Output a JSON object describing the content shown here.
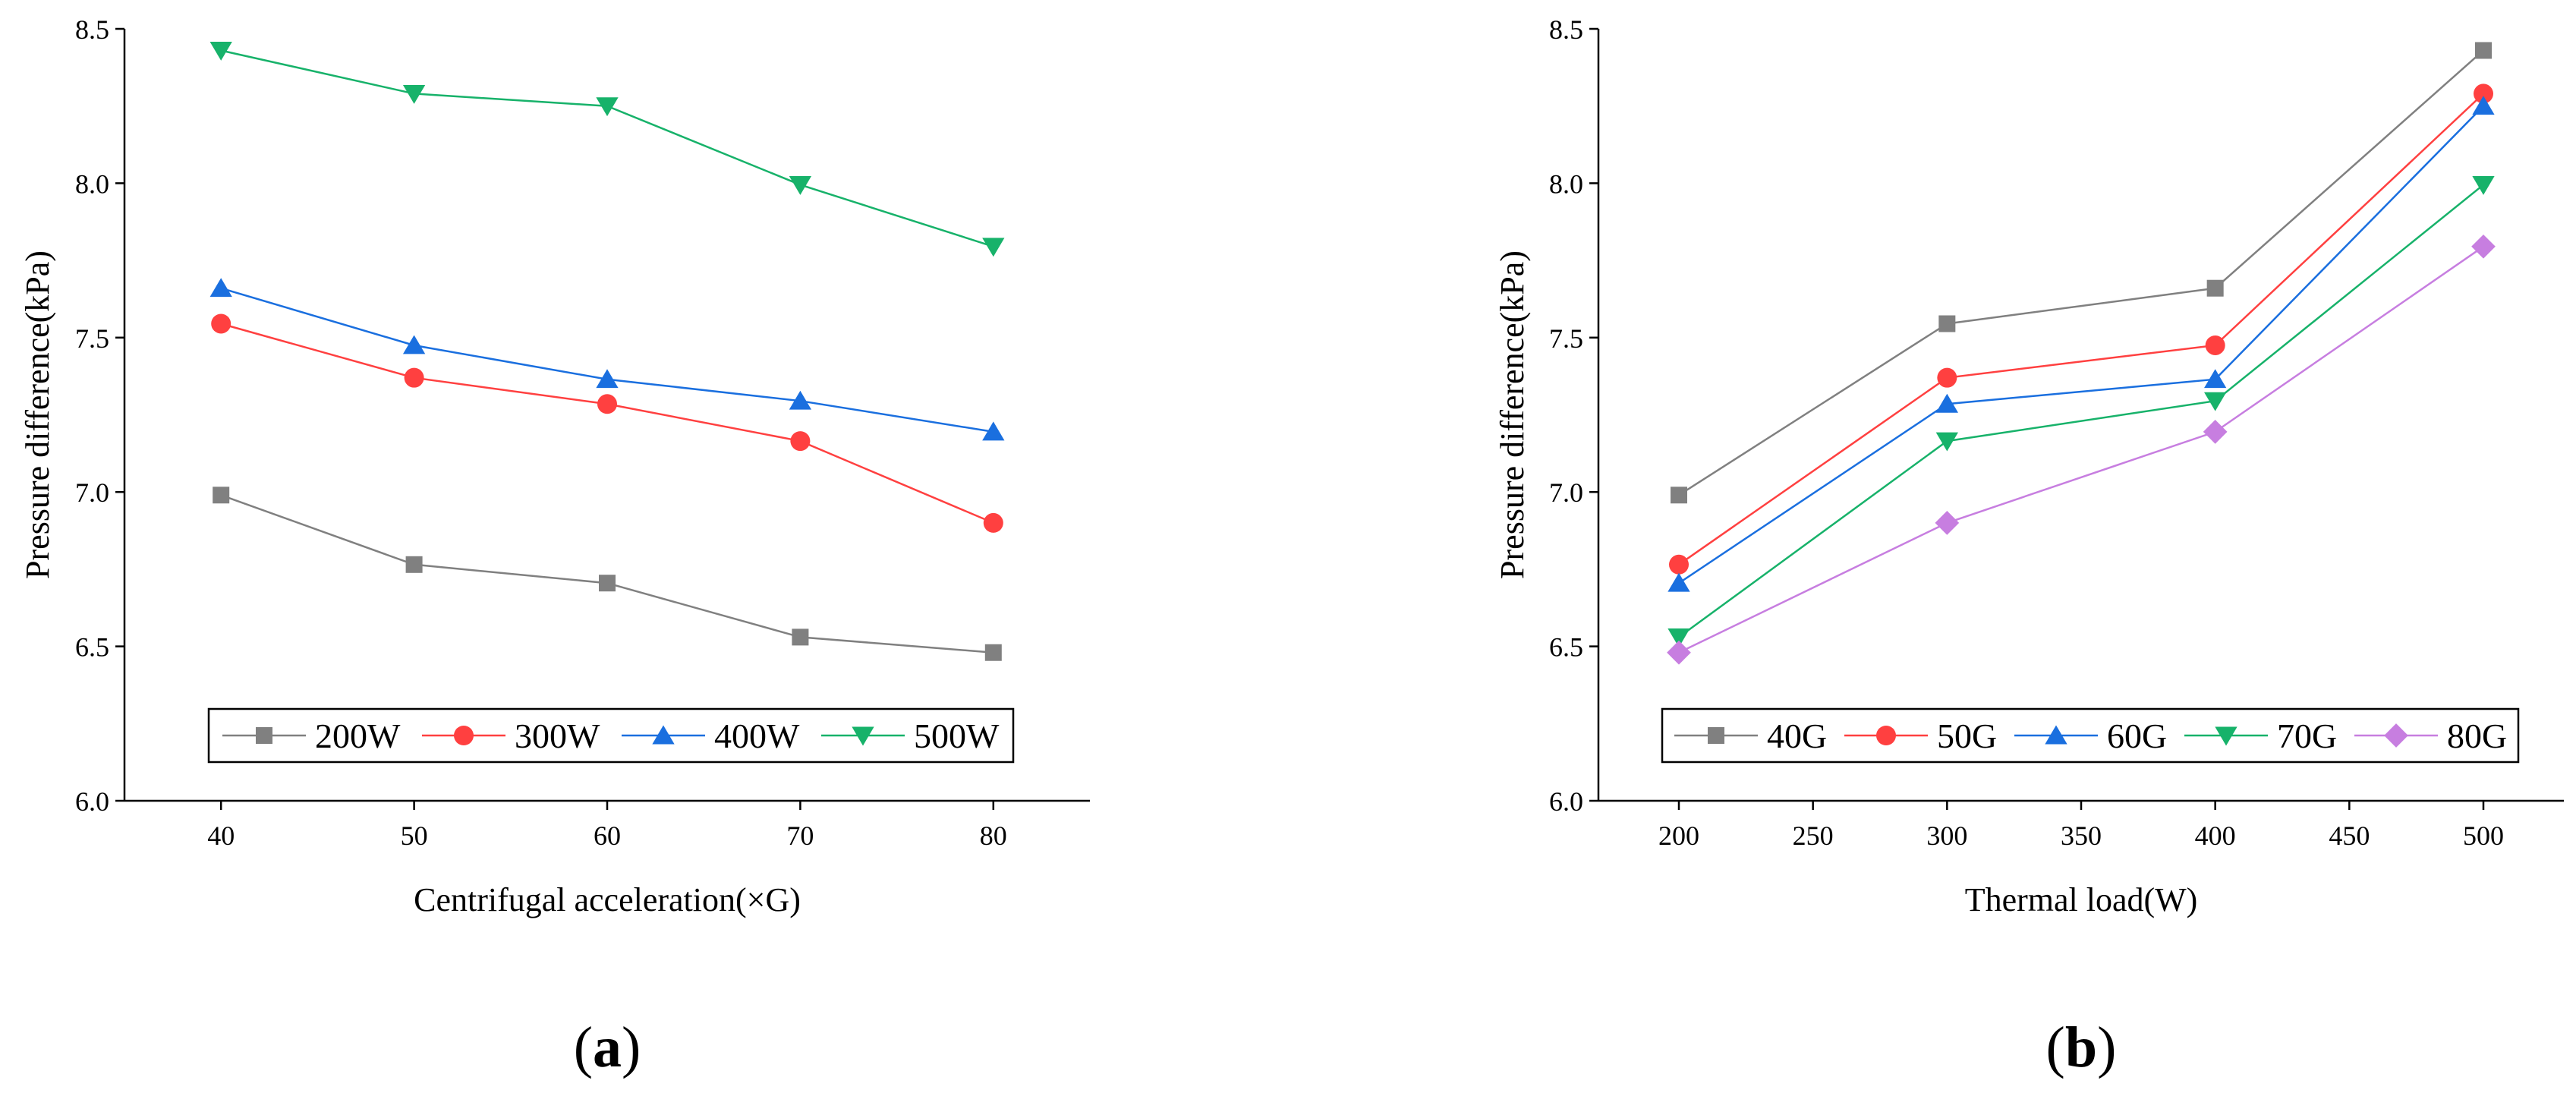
{
  "chart_data": [
    {
      "type": "line",
      "panel_label": "a",
      "xlabel": "Centrifugal acceleration(×G)",
      "ylabel": "Pressure difference(kPa)",
      "x": [
        40,
        50,
        60,
        70,
        80
      ],
      "xlim": [
        35,
        85
      ],
      "ylim": [
        6.0,
        8.5
      ],
      "xticks": [
        40,
        50,
        60,
        70,
        80
      ],
      "yticks": [
        6.0,
        6.5,
        7.0,
        7.5,
        8.0,
        8.5
      ],
      "grid": false,
      "legend_position": "bottom-center",
      "series": [
        {
          "name": "200W",
          "values": [
            6.99,
            6.765,
            6.705,
            6.53,
            6.48
          ],
          "color": "#808080",
          "marker": "square"
        },
        {
          "name": "300W",
          "values": [
            7.545,
            7.37,
            7.285,
            7.165,
            6.9
          ],
          "color": "#ff4040",
          "marker": "circle"
        },
        {
          "name": "400W",
          "values": [
            7.66,
            7.475,
            7.365,
            7.295,
            7.195
          ],
          "color": "#1a6fdf",
          "marker": "triangle-up"
        },
        {
          "name": "500W",
          "values": [
            8.43,
            8.29,
            8.25,
            7.995,
            7.795
          ],
          "color": "#17b26a",
          "marker": "triangle-down"
        }
      ]
    },
    {
      "type": "line",
      "panel_label": "b",
      "xlabel": "Thermal load(W)",
      "ylabel": "Pressure difference(kPa)",
      "x": [
        200,
        300,
        400,
        500
      ],
      "xlim": [
        170,
        530
      ],
      "ylim": [
        6.0,
        8.5
      ],
      "xticks": [
        200,
        250,
        300,
        350,
        400,
        450,
        500
      ],
      "yticks": [
        6.0,
        6.5,
        7.0,
        7.5,
        8.0,
        8.5
      ],
      "grid": false,
      "legend_position": "bottom-center",
      "series": [
        {
          "name": "40G",
          "values": [
            6.99,
            7.545,
            7.66,
            8.43
          ],
          "color": "#808080",
          "marker": "square"
        },
        {
          "name": "50G",
          "values": [
            6.765,
            7.37,
            7.475,
            8.29
          ],
          "color": "#ff4040",
          "marker": "circle"
        },
        {
          "name": "60G",
          "values": [
            6.705,
            7.285,
            7.365,
            8.25
          ],
          "color": "#1a6fdf",
          "marker": "triangle-up"
        },
        {
          "name": "70G",
          "values": [
            6.53,
            7.165,
            7.295,
            7.995
          ],
          "color": "#17b26a",
          "marker": "triangle-down"
        },
        {
          "name": "80G",
          "values": [
            6.48,
            6.9,
            7.195,
            7.795
          ],
          "color": "#c77ee0",
          "marker": "diamond"
        }
      ]
    }
  ]
}
